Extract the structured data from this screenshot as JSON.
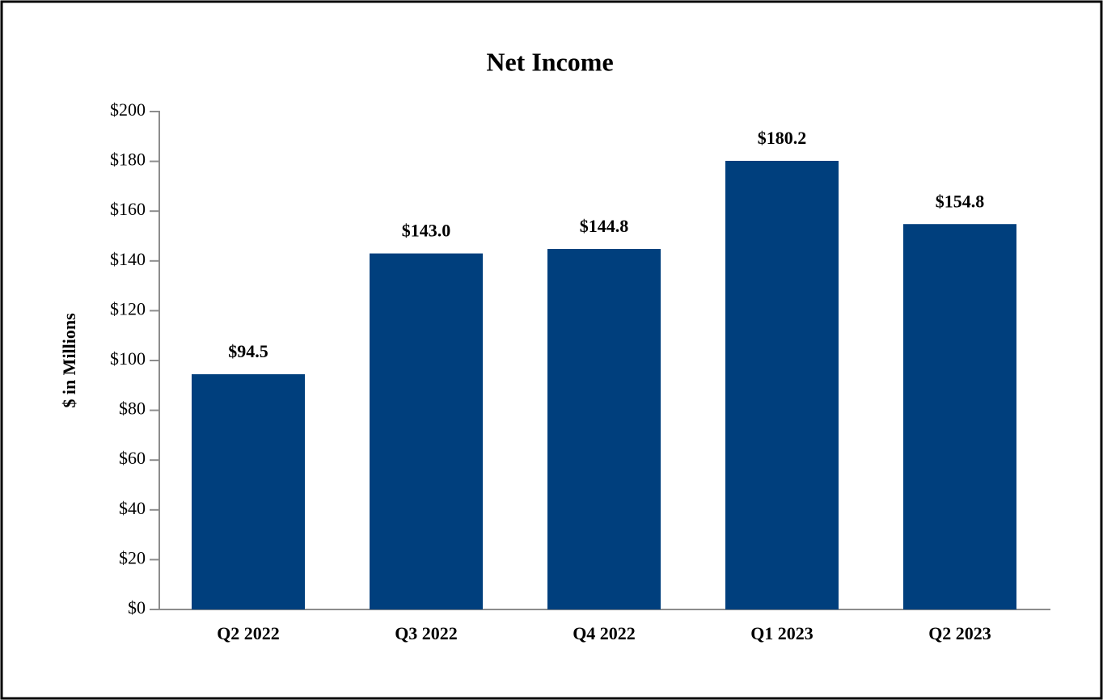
{
  "chart_data": {
    "type": "bar",
    "title": "Net Income",
    "y_label": "$ in Millions",
    "categories": [
      "Q2 2022",
      "Q3 2022",
      "Q4 2022",
      "Q1 2023",
      "Q2 2023"
    ],
    "values": [
      94.5,
      143.0,
      144.8,
      180.2,
      154.8
    ],
    "value_labels": [
      "$94.5",
      "$143.0",
      "$144.8",
      "$180.2",
      "$154.8"
    ],
    "color": "#003f7d",
    "ylim": [
      0,
      200
    ],
    "yticks": [
      {
        "value": 0,
        "label": "$0"
      },
      {
        "value": 20,
        "label": "$20"
      },
      {
        "value": 40,
        "label": "$40"
      },
      {
        "value": 60,
        "label": "$60"
      },
      {
        "value": 80,
        "label": "$80"
      },
      {
        "value": 100,
        "label": "$100"
      },
      {
        "value": 120,
        "label": "$120"
      },
      {
        "value": 140,
        "label": "$140"
      },
      {
        "value": 160,
        "label": "$160"
      },
      {
        "value": 180,
        "label": "$180"
      },
      {
        "value": 200,
        "label": "$200"
      }
    ],
    "grid": false
  }
}
